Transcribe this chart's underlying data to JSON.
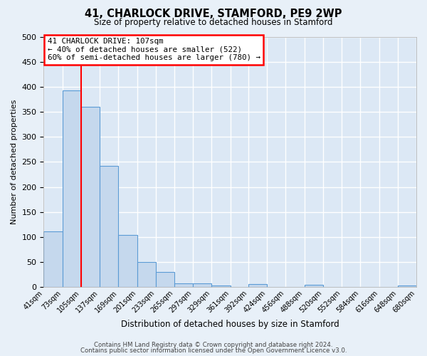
{
  "title": "41, CHARLOCK DRIVE, STAMFORD, PE9 2WP",
  "subtitle": "Size of property relative to detached houses in Stamford",
  "xlabel": "Distribution of detached houses by size in Stamford",
  "ylabel": "Number of detached properties",
  "bin_edges": [
    41,
    73,
    105,
    137,
    169,
    201,
    233,
    265,
    297,
    329,
    361,
    392,
    424,
    456,
    488,
    520,
    552,
    584,
    616,
    648,
    680
  ],
  "bar_heights": [
    112,
    393,
    360,
    242,
    104,
    50,
    30,
    8,
    8,
    3,
    0,
    6,
    0,
    0,
    5,
    0,
    0,
    0,
    0,
    3
  ],
  "bar_color": "#c5d8ed",
  "bar_edge_color": "#5b9bd5",
  "tick_labels": [
    "41sqm",
    "73sqm",
    "105sqm",
    "137sqm",
    "169sqm",
    "201sqm",
    "233sqm",
    "265sqm",
    "297sqm",
    "329sqm",
    "361sqm",
    "392sqm",
    "424sqm",
    "456sqm",
    "488sqm",
    "520sqm",
    "552sqm",
    "584sqm",
    "616sqm",
    "648sqm",
    "680sqm"
  ],
  "ylim": [
    0,
    500
  ],
  "yticks": [
    0,
    50,
    100,
    150,
    200,
    250,
    300,
    350,
    400,
    450,
    500
  ],
  "red_line_x": 105,
  "annotation_title": "41 CHARLOCK DRIVE: 107sqm",
  "annotation_line1": "← 40% of detached houses are smaller (522)",
  "annotation_line2": "60% of semi-detached houses are larger (780) →",
  "bg_color": "#e8f0f8",
  "plot_bg_color": "#dce8f5",
  "grid_color": "#ffffff",
  "footer_line1": "Contains HM Land Registry data © Crown copyright and database right 2024.",
  "footer_line2": "Contains public sector information licensed under the Open Government Licence v3.0."
}
